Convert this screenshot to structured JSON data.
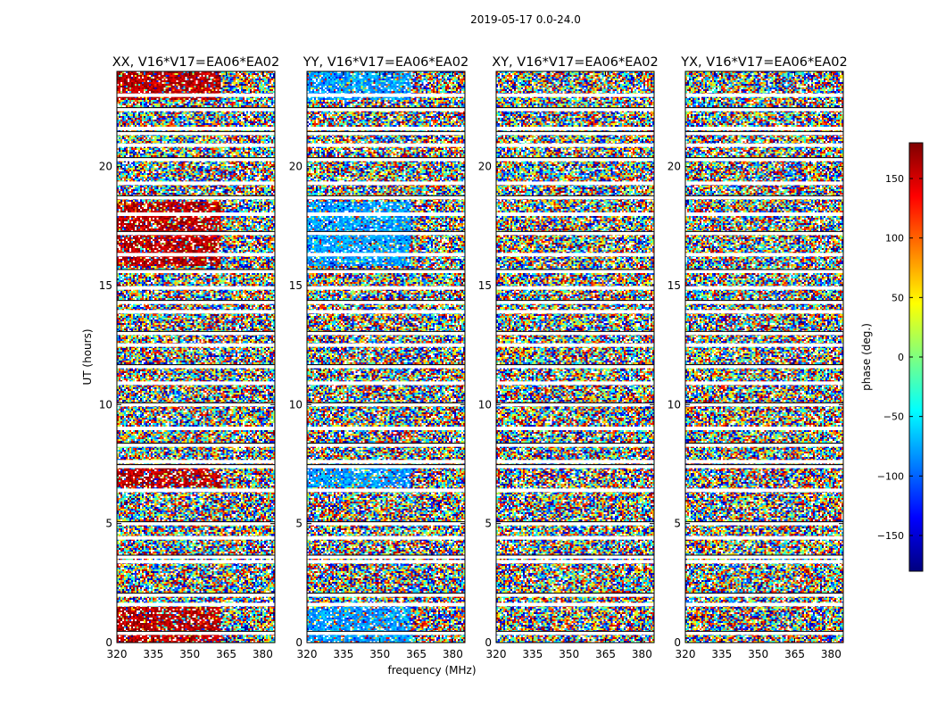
{
  "chart_data": {
    "type": "heatmap",
    "title": "2019-05-17 0.0-24.0",
    "xlabel": "frequency (MHz)",
    "ylabel": "UT (hours)",
    "xlim": [
      320,
      385
    ],
    "ylim": [
      0,
      24
    ],
    "xticks": [
      320,
      335,
      350,
      365,
      380
    ],
    "yticks": [
      0,
      5,
      10,
      15,
      20
    ],
    "colorbar": {
      "label": "phase (deg.)",
      "range": [
        -180,
        180
      ],
      "ticks": [
        -150,
        -100,
        -50,
        0,
        50,
        100,
        150
      ],
      "colormap": [
        "#00007f",
        "#0000ff",
        "#007fff",
        "#00ffff",
        "#7fff7f",
        "#ffff00",
        "#ff7f00",
        "#ff0000",
        "#7f0000"
      ]
    },
    "panels": [
      {
        "title": "XX, V16*V17=EA06*EA02",
        "dominant_phase": 160
      },
      {
        "title": "YY, V16*V17=EA06*EA02",
        "dominant_phase": -80
      },
      {
        "title": "XY, V16*V17=EA06*EA02",
        "dominant_phase": null
      },
      {
        "title": "YX, V16*V17=EA06*EA02",
        "dominant_phase": null
      }
    ],
    "coherent_segments_hours": [
      [
        0,
        1.5
      ],
      [
        6.5,
        7.5
      ],
      [
        15.8,
        18.5
      ],
      [
        22.8,
        24
      ]
    ],
    "coherent_freq_range_mhz": [
      320,
      363
    ],
    "flagged_gaps_hours": [
      0.4,
      1.6,
      2.0,
      3.4,
      3.6,
      4.4,
      5.0,
      6.4,
      7.4,
      7.6,
      8.3,
      9.0,
      10.0,
      10.9,
      11.6,
      12.5,
      13.0,
      13.9,
      14.3,
      14.9,
      15.6,
      16.3,
      17.2,
      18.0,
      18.7,
      19.3,
      20.3,
      20.9,
      21.4,
      21.6,
      22.4,
      23.0
    ]
  }
}
